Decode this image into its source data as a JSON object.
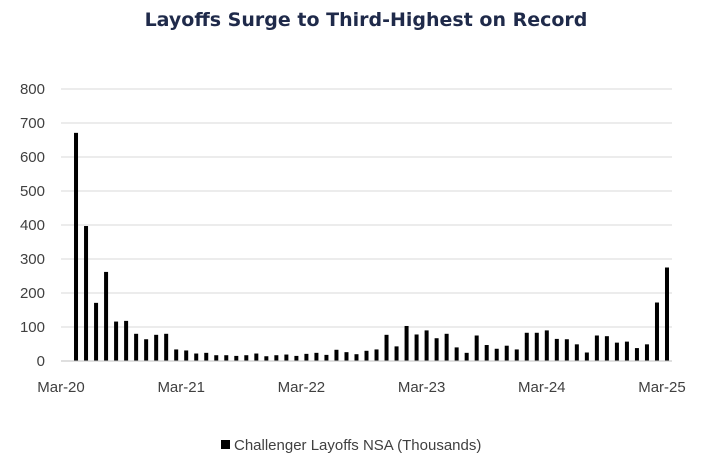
{
  "chart_data": {
    "type": "bar",
    "title": "Layoffs Surge to Third-Highest on Record",
    "xlabel": "",
    "ylabel": "",
    "ylim": [
      0,
      800
    ],
    "yticks": [
      "0",
      "100",
      "200",
      "300",
      "400",
      "500",
      "600",
      "700",
      "800"
    ],
    "xtick_labels": [
      {
        "label": "Mar-20",
        "index": 0
      },
      {
        "label": "Mar-21",
        "index": 12
      },
      {
        "label": "Mar-22",
        "index": 24
      },
      {
        "label": "Mar-23",
        "index": 36
      },
      {
        "label": "Mar-24",
        "index": 48
      },
      {
        "label": "Mar-25",
        "index": 60
      }
    ],
    "categories": [
      "Mar-20",
      "Apr-20",
      "May-20",
      "Jun-20",
      "Jul-20",
      "Aug-20",
      "Sep-20",
      "Oct-20",
      "Nov-20",
      "Dec-20",
      "Jan-21",
      "Feb-21",
      "Mar-21",
      "Apr-21",
      "May-21",
      "Jun-21",
      "Jul-21",
      "Aug-21",
      "Sep-21",
      "Oct-21",
      "Nov-21",
      "Dec-21",
      "Jan-22",
      "Feb-22",
      "Mar-22",
      "Apr-22",
      "May-22",
      "Jun-22",
      "Jul-22",
      "Aug-22",
      "Sep-22",
      "Oct-22",
      "Nov-22",
      "Dec-22",
      "Jan-23",
      "Feb-23",
      "Mar-23",
      "Apr-23",
      "May-23",
      "Jun-23",
      "Jul-23",
      "Aug-23",
      "Sep-23",
      "Oct-23",
      "Nov-23",
      "Dec-23",
      "Jan-24",
      "Feb-24",
      "Mar-24",
      "Apr-24",
      "May-24",
      "Jun-24",
      "Jul-24",
      "Aug-24",
      "Sep-24",
      "Oct-24",
      "Nov-24",
      "Dec-24",
      "Jan-25",
      "Feb-25",
      "Mar-25"
    ],
    "series": [
      {
        "name": "Challenger Layoffs NSA (Thousands)",
        "color": "#000000",
        "values": [
          0,
          671,
          397,
          171,
          262,
          116,
          118,
          80,
          64,
          77,
          80,
          34,
          31,
          22,
          24,
          17,
          17,
          15,
          17,
          22,
          14,
          17,
          19,
          15,
          21,
          24,
          18,
          33,
          26,
          20,
          30,
          34,
          77,
          43,
          103,
          78,
          90,
          67,
          80,
          40,
          24,
          75,
          47,
          36,
          45,
          34,
          83,
          83,
          90,
          65,
          64,
          49,
          25,
          75,
          73,
          54,
          57,
          38,
          49,
          172,
          275
        ]
      }
    ],
    "legend": {
      "position": "bottom",
      "label": "Challenger Layoffs NSA (Thousands)"
    }
  }
}
